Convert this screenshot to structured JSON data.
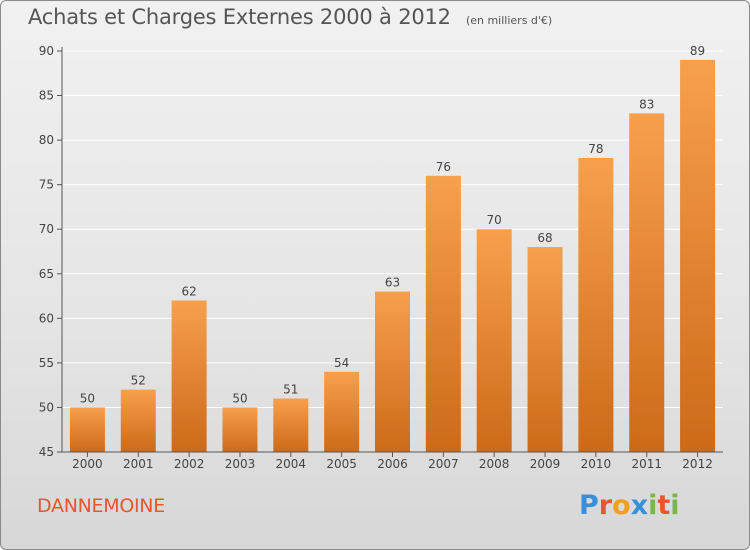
{
  "header": {
    "title": "Achats et Charges Externes 2000 à 2012",
    "subtitle": "(en milliers d'€)"
  },
  "footer": {
    "commune": "DANNEMOINE",
    "logo": {
      "text": "Proxiti",
      "letters": [
        {
          "char": "P",
          "color": "#3a8fd6"
        },
        {
          "char": "r",
          "color": "#e8562a"
        },
        {
          "char": "o",
          "color": "#f0a020"
        },
        {
          "char": "x",
          "color": "#3a8fd6"
        },
        {
          "char": "i",
          "color": "#7ab648"
        },
        {
          "char": "t",
          "color": "#e8562a"
        },
        {
          "char": "i",
          "color": "#7ab648"
        }
      ]
    }
  },
  "colors": {
    "bar_top": "#f7a04c",
    "bar_bottom": "#cc6a18",
    "axis": "#555555",
    "grid": "#ffffff",
    "text": "#444444"
  },
  "chart_data": {
    "type": "bar",
    "title": "Achats et Charges Externes 2000 à 2012",
    "xlabel": "",
    "ylabel": "",
    "categories": [
      "2000",
      "2001",
      "2002",
      "2003",
      "2004",
      "2005",
      "2006",
      "2007",
      "2008",
      "2009",
      "2010",
      "2011",
      "2012"
    ],
    "values": [
      50,
      52,
      62,
      50,
      51,
      54,
      63,
      76,
      70,
      68,
      78,
      83,
      89
    ],
    "ylim": [
      45,
      90
    ],
    "yticks": [
      45,
      50,
      55,
      60,
      65,
      70,
      75,
      80,
      85,
      90
    ],
    "grid": true,
    "data_labels": true
  }
}
